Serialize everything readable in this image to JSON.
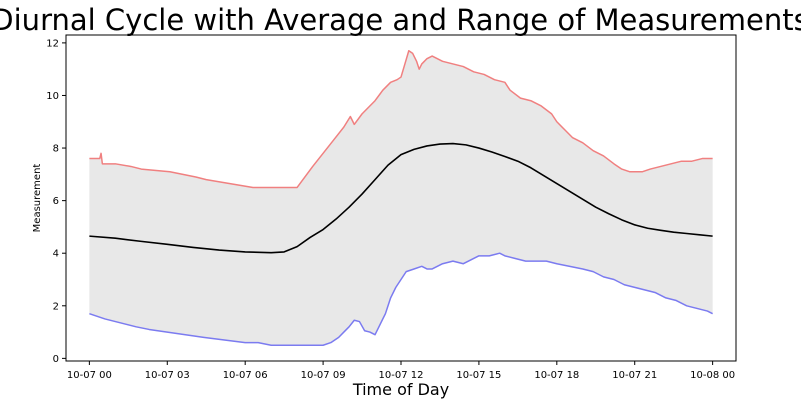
{
  "chart_data": {
    "type": "line",
    "title": "Diurnal Cycle with Average and Range of Measurements",
    "xlabel": "Time of Day",
    "ylabel": "Measurement",
    "x_ticks": [
      "10-07 00",
      "10-07 03",
      "10-07 06",
      "10-07 09",
      "10-07 12",
      "10-07 15",
      "10-07 18",
      "10-07 21",
      "10-08 00"
    ],
    "x_range_hours": [
      -0.9,
      24.9
    ],
    "x_tick_hours": [
      0,
      3,
      6,
      9,
      12,
      15,
      18,
      21,
      24
    ],
    "y_ticks": [
      0,
      2,
      4,
      6,
      8,
      10,
      12
    ],
    "ylim": [
      -0.1,
      12.3
    ],
    "grid": false,
    "legend": "none",
    "colors": {
      "max": "#f08080",
      "min": "#7b7bf0",
      "mean": "#000000",
      "fill": "#e8e8e8"
    },
    "series": [
      {
        "key": "max",
        "x": [
          0,
          0.4,
          0.45,
          0.5,
          1,
          1.6,
          2,
          3.1,
          3.6,
          4.1,
          4.5,
          5.1,
          5.7,
          6.3,
          7,
          8,
          8.3,
          8.6,
          9,
          9.4,
          9.8,
          10.05,
          10.2,
          10.5,
          10.8,
          11,
          11.3,
          11.6,
          11.85,
          12,
          12.15,
          12.3,
          12.45,
          12.6,
          12.7,
          12.8,
          12.9,
          13,
          13.2,
          13.6,
          14,
          14.4,
          14.8,
          15.2,
          15.6,
          16,
          16.2,
          16.6,
          17,
          17.4,
          17.8,
          18,
          18.3,
          18.6,
          19,
          19.4,
          19.8,
          20.2,
          20.5,
          20.8,
          21,
          21.3,
          21.6,
          22,
          22.4,
          22.8,
          23.2,
          23.6,
          24
        ],
        "values": [
          7.6,
          7.6,
          7.8,
          7.4,
          7.4,
          7.3,
          7.2,
          7.1,
          7.0,
          6.9,
          6.8,
          6.7,
          6.6,
          6.5,
          6.5,
          6.5,
          6.9,
          7.3,
          7.8,
          8.3,
          8.8,
          9.2,
          8.9,
          9.3,
          9.6,
          9.8,
          10.2,
          10.5,
          10.6,
          10.7,
          11.2,
          11.7,
          11.6,
          11.3,
          11.0,
          11.2,
          11.3,
          11.4,
          11.5,
          11.3,
          11.2,
          11.1,
          10.9,
          10.8,
          10.6,
          10.5,
          10.2,
          9.9,
          9.8,
          9.6,
          9.3,
          9.0,
          8.7,
          8.4,
          8.2,
          7.9,
          7.7,
          7.4,
          7.2,
          7.1,
          7.1,
          7.1,
          7.2,
          7.3,
          7.4,
          7.5,
          7.5,
          7.6,
          7.6
        ]
      },
      {
        "key": "mean",
        "x": [
          0,
          1,
          2,
          3,
          4,
          5,
          6,
          7,
          7.5,
          8,
          8.5,
          9,
          9.5,
          10,
          10.5,
          11,
          11.5,
          12,
          12.5,
          13,
          13.5,
          14,
          14.5,
          15,
          15.5,
          16,
          16.5,
          17,
          17.5,
          18,
          18.5,
          19,
          19.5,
          20,
          20.5,
          21,
          21.5,
          22,
          22.5,
          23,
          23.5,
          24
        ],
        "values": [
          4.65,
          4.57,
          4.45,
          4.34,
          4.22,
          4.12,
          4.05,
          4.02,
          4.05,
          4.25,
          4.6,
          4.9,
          5.3,
          5.75,
          6.25,
          6.8,
          7.35,
          7.75,
          7.95,
          8.08,
          8.15,
          8.17,
          8.12,
          8.0,
          7.85,
          7.68,
          7.5,
          7.25,
          6.95,
          6.65,
          6.35,
          6.05,
          5.75,
          5.5,
          5.27,
          5.08,
          4.95,
          4.87,
          4.8,
          4.75,
          4.7,
          4.65
        ]
      },
      {
        "key": "min",
        "x": [
          0,
          0.3,
          0.6,
          1.0,
          1.4,
          1.8,
          2.3,
          3.0,
          3.7,
          4.4,
          5.2,
          6.0,
          6.5,
          7.0,
          8.0,
          9.0,
          9.3,
          9.6,
          9.8,
          10.0,
          10.2,
          10.4,
          10.6,
          10.8,
          11.0,
          11.2,
          11.4,
          11.6,
          11.8,
          12.0,
          12.2,
          12.5,
          12.8,
          13.0,
          13.2,
          13.4,
          13.6,
          14.0,
          14.4,
          14.8,
          15.0,
          15.4,
          15.8,
          16.0,
          16.4,
          16.8,
          17.2,
          17.6,
          18.0,
          18.5,
          19.0,
          19.4,
          19.8,
          20.2,
          20.6,
          21.0,
          21.4,
          21.8,
          22.2,
          22.6,
          23.0,
          23.4,
          23.8,
          24
        ],
        "values": [
          1.7,
          1.6,
          1.5,
          1.4,
          1.3,
          1.2,
          1.1,
          1.0,
          0.9,
          0.8,
          0.7,
          0.6,
          0.6,
          0.5,
          0.5,
          0.5,
          0.6,
          0.8,
          1.0,
          1.2,
          1.45,
          1.4,
          1.05,
          1.0,
          0.9,
          1.3,
          1.7,
          2.3,
          2.7,
          3.0,
          3.3,
          3.4,
          3.5,
          3.4,
          3.4,
          3.5,
          3.6,
          3.7,
          3.6,
          3.8,
          3.9,
          3.9,
          4.0,
          3.9,
          3.8,
          3.7,
          3.7,
          3.7,
          3.6,
          3.5,
          3.4,
          3.3,
          3.1,
          3.0,
          2.8,
          2.7,
          2.6,
          2.5,
          2.3,
          2.2,
          2.0,
          1.9,
          1.8,
          1.7
        ]
      }
    ]
  }
}
